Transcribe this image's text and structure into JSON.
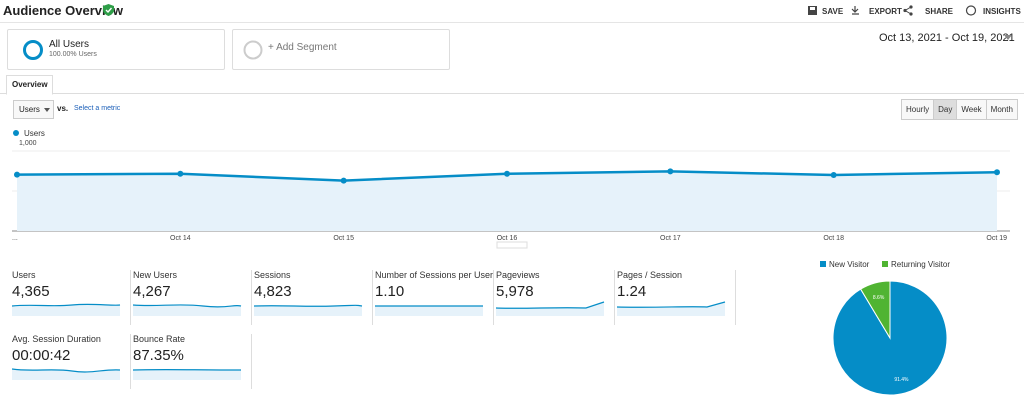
{
  "header": {
    "title": "Audience Overview",
    "actions": [
      "SAVE",
      "EXPORT",
      "SHARE",
      "INSIGHTS"
    ]
  },
  "segments": [
    {
      "label": "All Users",
      "sublabel": "100.00% Users"
    },
    {
      "label": "+ Add Segment"
    }
  ],
  "date_range": "Oct 13, 2021 - Oct 19, 2021",
  "tab": "Overview",
  "controls": {
    "metric": "Users",
    "vs": "vs.",
    "select": "Select a metric",
    "granularity": [
      "Hourly",
      "Day",
      "Week",
      "Month"
    ]
  },
  "chart_data": [
    {
      "type": "line",
      "categories": [
        "...",
        "Oct 14",
        "Oct 15",
        "Oct 16",
        "Oct 17",
        "Oct 18",
        "Oct 19"
      ],
      "series": [
        {
          "name": "Users",
          "color": "#058dc7",
          "values": [
            705,
            715,
            630,
            715,
            745,
            700,
            735
          ]
        }
      ],
      "ylim": [
        0,
        1100
      ],
      "yticks": [
        {
          "value": 1000,
          "label": "1,000"
        },
        500
      ],
      "grid": true
    },
    {
      "type": "pie",
      "categories": [
        "New Visitor",
        "Returning Visitor"
      ],
      "values": [
        91.4,
        8.6
      ],
      "value_labels": [
        "91.4%",
        "8.6%"
      ],
      "colors": [
        "#058dc7",
        "#50b432"
      ]
    }
  ],
  "metrics": [
    {
      "label": "Users",
      "value": "4,365"
    },
    {
      "label": "New Users",
      "value": "4,267"
    },
    {
      "label": "Sessions",
      "value": "4,823"
    },
    {
      "label": "Number of Sessions per User",
      "value": "1.10"
    },
    {
      "label": "Pageviews",
      "value": "5,978"
    },
    {
      "label": "Pages / Session",
      "value": "1.24"
    },
    {
      "label": "Avg. Session Duration",
      "value": "00:00:42"
    },
    {
      "label": "Bounce Rate",
      "value": "87.35%"
    }
  ]
}
